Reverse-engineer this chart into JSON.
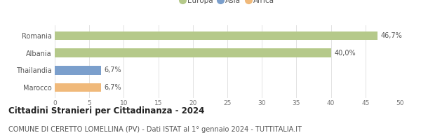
{
  "categories": [
    "Romania",
    "Albania",
    "Thailandia",
    "Marocco"
  ],
  "values": [
    46.7,
    40.0,
    6.7,
    6.7
  ],
  "labels": [
    "46,7%",
    "40,0%",
    "6,7%",
    "6,7%"
  ],
  "colors": [
    "#b5c98a",
    "#b5c98a",
    "#7b9fcc",
    "#f0b97a"
  ],
  "legend": [
    {
      "label": "Europa",
      "color": "#b5c98a"
    },
    {
      "label": "Asia",
      "color": "#7b9fcc"
    },
    {
      "label": "Africa",
      "color": "#f0b97a"
    }
  ],
  "xlim": [
    0,
    50
  ],
  "xticks": [
    0,
    5,
    10,
    15,
    20,
    25,
    30,
    35,
    40,
    45,
    50
  ],
  "title": "Cittadini Stranieri per Cittadinanza - 2024",
  "subtitle": "COMUNE DI CERETTO LOMELLINA (PV) - Dati ISTAT al 1° gennaio 2024 - TUTTITALIA.IT",
  "title_fontsize": 8.5,
  "subtitle_fontsize": 7,
  "label_fontsize": 7,
  "tick_fontsize": 6.5,
  "legend_fontsize": 7.5,
  "bar_height": 0.5,
  "background_color": "#ffffff",
  "grid_color": "#dddddd"
}
